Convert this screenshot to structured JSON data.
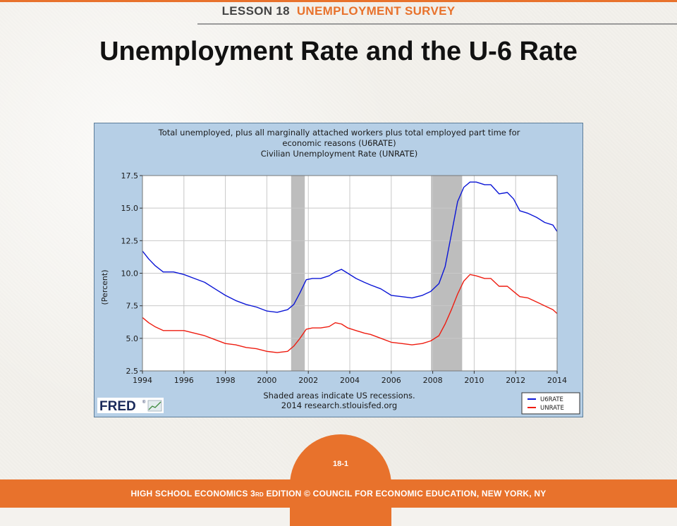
{
  "header": {
    "lesson": "LESSON 18",
    "topic": "UNEMPLOYMENT SURVEY"
  },
  "title": "Unemployment Rate and the U-6 Rate",
  "page_number": "18-1",
  "footer": {
    "pre": "HIGH SCHOOL ECONOMICS 3",
    "rd": "RD",
    "post": " EDITION © COUNCIL FOR ECONOMIC EDUCATION, NEW YORK, NY"
  },
  "colors": {
    "orange": "#e8722c",
    "panel": "#b6cfe6",
    "u6": "#0b16d6",
    "unrate": "#ee1c10",
    "recession": "#bdbdbd"
  },
  "fred": {
    "logo_text": "FRED",
    "logo_registered": "®"
  },
  "chart_data": {
    "type": "line",
    "title": [
      "Total unemployed, plus all marginally attached workers plus total employed part time for",
      "economic reasons (U6RATE)",
      "Civilian Unemployment Rate (UNRATE)"
    ],
    "ylabel": "(Percent)",
    "xlabel": "",
    "ylim": [
      2.5,
      17.5
    ],
    "xlim": [
      1994,
      2014
    ],
    "yticks": [
      2.5,
      5.0,
      7.5,
      10.0,
      12.5,
      15.0,
      17.5
    ],
    "ytick_labels": [
      "2.5",
      "5.0",
      "7.5",
      "10.0",
      "12.5",
      "15.0",
      "17.5"
    ],
    "xticks": [
      1994,
      1996,
      1998,
      2000,
      2002,
      2004,
      2006,
      2008,
      2010,
      2012,
      2014
    ],
    "xtick_labels": [
      "1994",
      "1996",
      "1998",
      "2000",
      "2002",
      "2004",
      "2006",
      "2008",
      "2010",
      "2012",
      "2014"
    ],
    "grid": true,
    "legend_position": "bottom-right",
    "recessions": [
      {
        "start": 2001.17,
        "end": 2001.83
      },
      {
        "start": 2007.92,
        "end": 2009.42
      }
    ],
    "notes": [
      "Shaded areas indicate US recessions.",
      "2014 research.stlouisfed.org"
    ],
    "series": [
      {
        "name": "U6RATE",
        "color": "#0b16d6",
        "x": [
          1994.0,
          1994.3,
          1994.6,
          1995.0,
          1995.5,
          1996.0,
          1996.5,
          1997.0,
          1997.5,
          1998.0,
          1998.5,
          1999.0,
          1999.5,
          2000.0,
          2000.5,
          2001.0,
          2001.3,
          2001.6,
          2001.9,
          2002.2,
          2002.6,
          2003.0,
          2003.3,
          2003.6,
          2003.9,
          2004.3,
          2004.7,
          2005.0,
          2005.5,
          2006.0,
          2006.5,
          2007.0,
          2007.5,
          2007.9,
          2008.3,
          2008.6,
          2008.9,
          2009.2,
          2009.5,
          2009.8,
          2010.1,
          2010.5,
          2010.8,
          2011.2,
          2011.6,
          2011.9,
          2012.2,
          2012.6,
          2013.0,
          2013.4,
          2013.8,
          2014.0
        ],
        "values": [
          11.7,
          11.1,
          10.6,
          10.1,
          10.1,
          9.9,
          9.6,
          9.3,
          8.8,
          8.3,
          7.9,
          7.6,
          7.4,
          7.1,
          7.0,
          7.2,
          7.6,
          8.5,
          9.5,
          9.6,
          9.6,
          9.8,
          10.1,
          10.3,
          10.0,
          9.6,
          9.3,
          9.1,
          8.8,
          8.3,
          8.2,
          8.1,
          8.3,
          8.6,
          9.2,
          10.5,
          13.0,
          15.5,
          16.6,
          17.0,
          17.0,
          16.8,
          16.8,
          16.1,
          16.2,
          15.7,
          14.8,
          14.6,
          14.3,
          13.9,
          13.7,
          13.2
        ]
      },
      {
        "name": "UNRATE",
        "color": "#ee1c10",
        "x": [
          1994.0,
          1994.3,
          1994.6,
          1995.0,
          1995.5,
          1996.0,
          1996.5,
          1997.0,
          1997.5,
          1998.0,
          1998.5,
          1999.0,
          1999.5,
          2000.0,
          2000.5,
          2001.0,
          2001.3,
          2001.6,
          2001.9,
          2002.2,
          2002.6,
          2003.0,
          2003.3,
          2003.6,
          2003.9,
          2004.3,
          2004.7,
          2005.0,
          2005.5,
          2006.0,
          2006.5,
          2007.0,
          2007.5,
          2007.9,
          2008.3,
          2008.6,
          2008.9,
          2009.2,
          2009.5,
          2009.8,
          2010.1,
          2010.5,
          2010.8,
          2011.2,
          2011.6,
          2011.9,
          2012.2,
          2012.6,
          2013.0,
          2013.4,
          2013.8,
          2014.0
        ],
        "values": [
          6.6,
          6.2,
          5.9,
          5.6,
          5.6,
          5.6,
          5.4,
          5.2,
          4.9,
          4.6,
          4.5,
          4.3,
          4.2,
          4.0,
          3.9,
          4.0,
          4.4,
          5.0,
          5.7,
          5.8,
          5.8,
          5.9,
          6.2,
          6.1,
          5.8,
          5.6,
          5.4,
          5.3,
          5.0,
          4.7,
          4.6,
          4.5,
          4.6,
          4.8,
          5.2,
          6.1,
          7.2,
          8.4,
          9.4,
          9.9,
          9.8,
          9.6,
          9.6,
          9.0,
          9.0,
          8.6,
          8.2,
          8.1,
          7.8,
          7.5,
          7.2,
          6.9
        ]
      }
    ]
  }
}
